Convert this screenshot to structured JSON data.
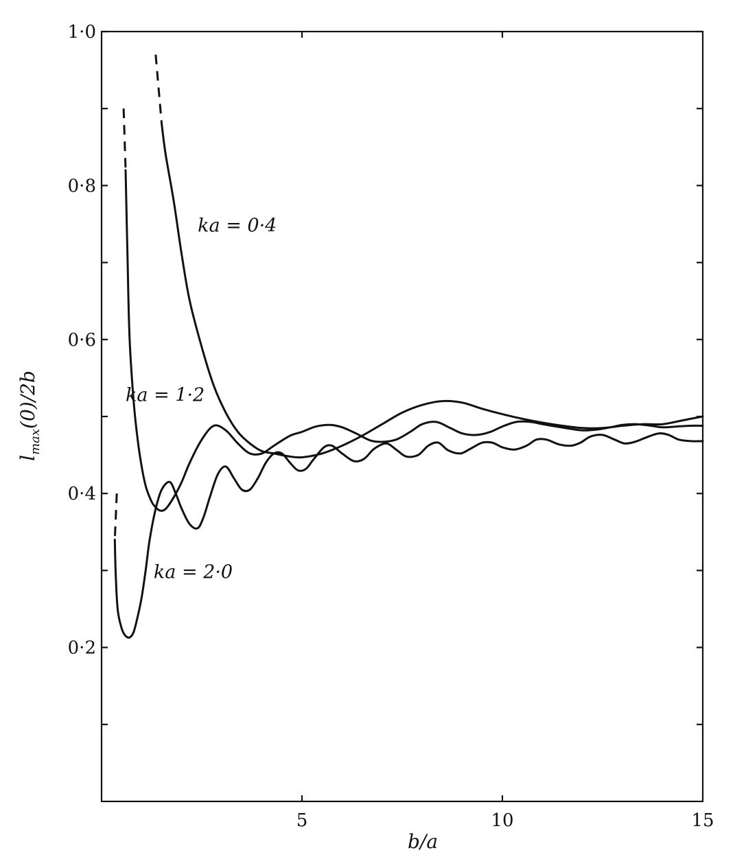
{
  "chart_data": {
    "type": "line",
    "xlabel": "b/a",
    "ylabel": "l_max(0)/2b",
    "ylabel_parts": {
      "main": "l",
      "sub": "max",
      "rest": "(0)/2b"
    },
    "xlim": [
      0,
      15
    ],
    "ylim": [
      0,
      1.0
    ],
    "x_ticks": [
      {
        "value": 5,
        "label": "5"
      },
      {
        "value": 10,
        "label": "10"
      },
      {
        "value": 15,
        "label": "15"
      }
    ],
    "x_minor_ticks": [],
    "y_ticks": [
      {
        "value": 0.2,
        "label": "0·2"
      },
      {
        "value": 0.4,
        "label": "0·4"
      },
      {
        "value": 0.6,
        "label": "0·6"
      },
      {
        "value": 0.8,
        "label": "0·8"
      },
      {
        "value": 1.0,
        "label": "1·0"
      }
    ],
    "y_minor_ticks": [
      0.1,
      0.3,
      0.5,
      0.7,
      0.9
    ],
    "grid": false,
    "series": [
      {
        "name": "ka = 0·4",
        "label_anchor": {
          "x": 2.4,
          "y": 0.74
        },
        "dashed": {
          "x": [
            1.35,
            1.5
          ],
          "y": [
            0.97,
            0.88
          ]
        },
        "x": [
          1.5,
          1.6,
          1.8,
          2.0,
          2.2,
          2.5,
          2.8,
          3.1,
          3.4,
          3.7,
          4.0,
          4.3,
          4.7,
          5.0,
          5.5,
          6.0,
          6.5,
          7.0,
          7.5,
          8.0,
          8.5,
          9.0,
          9.5,
          10.0,
          10.5,
          11.0,
          11.5,
          12.0,
          12.5,
          13.0,
          13.5,
          14.0,
          14.5,
          15.0
        ],
        "y": [
          0.88,
          0.84,
          0.78,
          0.71,
          0.65,
          0.59,
          0.54,
          0.505,
          0.48,
          0.465,
          0.455,
          0.452,
          0.448,
          0.447,
          0.452,
          0.462,
          0.475,
          0.49,
          0.505,
          0.515,
          0.52,
          0.518,
          0.51,
          0.503,
          0.497,
          0.492,
          0.488,
          0.485,
          0.485,
          0.488,
          0.49,
          0.49,
          0.495,
          0.5
        ]
      },
      {
        "name": "ka = 1·2",
        "label_anchor": {
          "x": 0.6,
          "y": 0.52
        },
        "dashed": {
          "x": [
            0.55,
            0.6
          ],
          "y": [
            0.9,
            0.82
          ]
        },
        "x": [
          0.6,
          0.65,
          0.7,
          0.8,
          0.9,
          1.0,
          1.1,
          1.2,
          1.3,
          1.45,
          1.6,
          1.8,
          2.0,
          2.2,
          2.5,
          2.8,
          3.1,
          3.4,
          3.7,
          4.0,
          4.3,
          4.7,
          5.0,
          5.35,
          5.7,
          6.0,
          6.35,
          6.7,
          7.0,
          7.35,
          7.7,
          8.0,
          8.35,
          8.7,
          9.0,
          9.35,
          9.7,
          10.0,
          10.35,
          10.7,
          11.0,
          11.35,
          11.7,
          12.0,
          12.35,
          12.7,
          13.0,
          13.35,
          13.7,
          14.0,
          14.35,
          14.7,
          15.0
        ],
        "y": [
          0.82,
          0.7,
          0.6,
          0.52,
          0.47,
          0.435,
          0.41,
          0.395,
          0.385,
          0.378,
          0.38,
          0.395,
          0.415,
          0.44,
          0.47,
          0.488,
          0.482,
          0.465,
          0.452,
          0.452,
          0.462,
          0.475,
          0.48,
          0.487,
          0.489,
          0.486,
          0.478,
          0.469,
          0.467,
          0.47,
          0.48,
          0.49,
          0.493,
          0.485,
          0.478,
          0.476,
          0.48,
          0.487,
          0.493,
          0.493,
          0.49,
          0.487,
          0.484,
          0.482,
          0.483,
          0.486,
          0.489,
          0.49,
          0.488,
          0.486,
          0.487,
          0.488,
          0.488
        ]
      },
      {
        "name": "ka = 2·0",
        "label_anchor": {
          "x": 1.3,
          "y": 0.29
        },
        "dashed": {
          "x": [
            0.38,
            0.33
          ],
          "y": [
            0.4,
            0.34
          ]
        },
        "x": [
          0.33,
          0.35,
          0.4,
          0.5,
          0.6,
          0.7,
          0.8,
          0.9,
          1.0,
          1.1,
          1.2,
          1.35,
          1.5,
          1.7,
          1.85,
          2.0,
          2.2,
          2.4,
          2.55,
          2.7,
          2.9,
          3.1,
          3.3,
          3.5,
          3.7,
          3.9,
          4.1,
          4.3,
          4.5,
          4.7,
          4.9,
          5.1,
          5.3,
          5.55,
          5.75,
          6.0,
          6.3,
          6.55,
          6.8,
          7.1,
          7.35,
          7.6,
          7.9,
          8.15,
          8.4,
          8.65,
          8.95,
          9.2,
          9.5,
          9.75,
          10.0,
          10.3,
          10.6,
          10.85,
          11.1,
          11.4,
          11.7,
          11.95,
          12.2,
          12.5,
          12.8,
          13.05,
          13.3,
          13.6,
          13.9,
          14.15,
          14.4,
          14.7,
          15.0
        ],
        "y": [
          0.34,
          0.3,
          0.25,
          0.225,
          0.215,
          0.213,
          0.22,
          0.24,
          0.265,
          0.3,
          0.34,
          0.38,
          0.405,
          0.415,
          0.4,
          0.38,
          0.36,
          0.355,
          0.37,
          0.395,
          0.425,
          0.435,
          0.42,
          0.405,
          0.405,
          0.42,
          0.44,
          0.452,
          0.452,
          0.44,
          0.43,
          0.432,
          0.445,
          0.46,
          0.462,
          0.452,
          0.442,
          0.445,
          0.458,
          0.465,
          0.457,
          0.448,
          0.45,
          0.462,
          0.466,
          0.456,
          0.452,
          0.458,
          0.466,
          0.466,
          0.46,
          0.457,
          0.462,
          0.47,
          0.47,
          0.464,
          0.462,
          0.466,
          0.474,
          0.476,
          0.47,
          0.465,
          0.467,
          0.473,
          0.478,
          0.476,
          0.47,
          0.468,
          0.468
        ]
      }
    ]
  }
}
